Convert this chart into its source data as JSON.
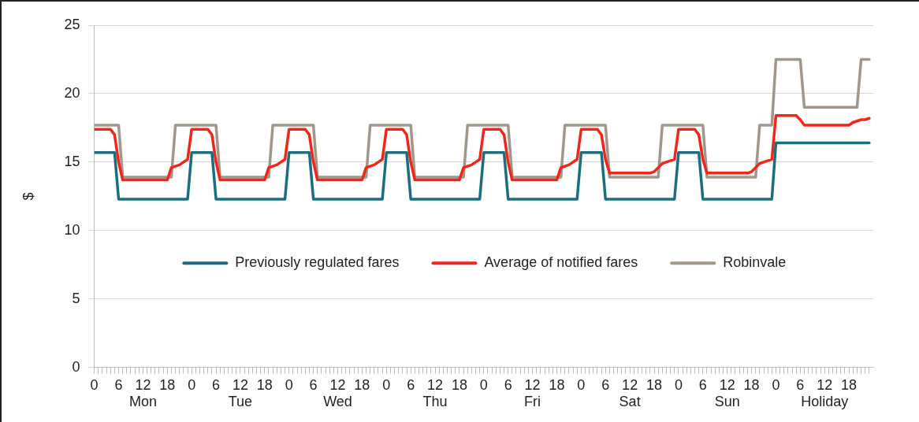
{
  "chart_data": {
    "type": "line",
    "ylabel": "$",
    "legend": "center",
    "grid": "y",
    "marker": "none",
    "line_style": "solid",
    "categories": [
      "0",
      null,
      null,
      null,
      null,
      null,
      "6",
      null,
      null,
      null,
      null,
      null,
      "12\nMon",
      null,
      null,
      null,
      null,
      null,
      "18",
      null,
      null,
      null,
      null,
      null,
      "0",
      null,
      null,
      null,
      null,
      null,
      "6",
      null,
      null,
      null,
      null,
      null,
      "12\nTue",
      null,
      null,
      null,
      null,
      null,
      "18",
      null,
      null,
      null,
      null,
      null,
      "0",
      null,
      null,
      null,
      null,
      null,
      "6",
      null,
      null,
      null,
      null,
      null,
      "12\nWed",
      null,
      null,
      null,
      null,
      null,
      "18",
      null,
      null,
      null,
      null,
      null,
      "0",
      null,
      null,
      null,
      null,
      null,
      "6",
      null,
      null,
      null,
      null,
      null,
      "12\nThu",
      null,
      null,
      null,
      null,
      null,
      "18",
      null,
      null,
      null,
      null,
      null,
      "0",
      null,
      null,
      null,
      null,
      null,
      "6",
      null,
      null,
      null,
      null,
      null,
      "12\nFri",
      null,
      null,
      null,
      null,
      null,
      "18",
      null,
      null,
      null,
      null,
      null,
      "0",
      null,
      null,
      null,
      null,
      null,
      "6",
      null,
      null,
      null,
      null,
      null,
      "12\nSat",
      null,
      null,
      null,
      null,
      null,
      "18",
      null,
      null,
      null,
      null,
      null,
      "0",
      null,
      null,
      null,
      null,
      null,
      "6",
      null,
      null,
      null,
      null,
      null,
      "12\nSun",
      null,
      null,
      null,
      null,
      null,
      "18",
      null,
      null,
      null,
      null,
      null,
      "0",
      null,
      null,
      null,
      null,
      null,
      "6",
      null,
      null,
      null,
      null,
      null,
      "12\nHoliday",
      null,
      null,
      null,
      null,
      null,
      "18",
      null,
      null,
      null,
      null,
      null
    ],
    "ylim": [
      0,
      25
    ],
    "yticks": [
      0,
      5,
      10,
      15,
      20,
      25
    ],
    "series": [
      {
        "name": "Previously regulated fares",
        "color": "#1b6e7e",
        "values": [
          15.7,
          15.7,
          15.7,
          15.7,
          15.7,
          15.7,
          12.3,
          12.3,
          12.3,
          12.3,
          12.3,
          12.3,
          12.3,
          12.3,
          12.3,
          12.3,
          12.3,
          12.3,
          12.3,
          12.3,
          12.3,
          12.3,
          12.3,
          12.3,
          15.7,
          15.7,
          15.7,
          15.7,
          15.7,
          15.7,
          12.3,
          12.3,
          12.3,
          12.3,
          12.3,
          12.3,
          12.3,
          12.3,
          12.3,
          12.3,
          12.3,
          12.3,
          12.3,
          12.3,
          12.3,
          12.3,
          12.3,
          12.3,
          15.7,
          15.7,
          15.7,
          15.7,
          15.7,
          15.7,
          12.3,
          12.3,
          12.3,
          12.3,
          12.3,
          12.3,
          12.3,
          12.3,
          12.3,
          12.3,
          12.3,
          12.3,
          12.3,
          12.3,
          12.3,
          12.3,
          12.3,
          12.3,
          15.7,
          15.7,
          15.7,
          15.7,
          15.7,
          15.7,
          12.3,
          12.3,
          12.3,
          12.3,
          12.3,
          12.3,
          12.3,
          12.3,
          12.3,
          12.3,
          12.3,
          12.3,
          12.3,
          12.3,
          12.3,
          12.3,
          12.3,
          12.3,
          15.7,
          15.7,
          15.7,
          15.7,
          15.7,
          15.7,
          12.3,
          12.3,
          12.3,
          12.3,
          12.3,
          12.3,
          12.3,
          12.3,
          12.3,
          12.3,
          12.3,
          12.3,
          12.3,
          12.3,
          12.3,
          12.3,
          12.3,
          12.3,
          15.7,
          15.7,
          15.7,
          15.7,
          15.7,
          15.7,
          12.3,
          12.3,
          12.3,
          12.3,
          12.3,
          12.3,
          12.3,
          12.3,
          12.3,
          12.3,
          12.3,
          12.3,
          12.3,
          12.3,
          12.3,
          12.3,
          12.3,
          12.3,
          15.7,
          15.7,
          15.7,
          15.7,
          15.7,
          15.7,
          12.3,
          12.3,
          12.3,
          12.3,
          12.3,
          12.3,
          12.3,
          12.3,
          12.3,
          12.3,
          12.3,
          12.3,
          12.3,
          12.3,
          12.3,
          12.3,
          12.3,
          12.3,
          16.4,
          16.4,
          16.4,
          16.4,
          16.4,
          16.4,
          16.4,
          16.4,
          16.4,
          16.4,
          16.4,
          16.4,
          16.4,
          16.4,
          16.4,
          16.4,
          16.4,
          16.4,
          16.4,
          16.4,
          16.4,
          16.4,
          16.4,
          16.4
        ]
      },
      {
        "name": "Average of notified fares",
        "color": "#f0261b",
        "values": [
          17.4,
          17.4,
          17.4,
          17.4,
          17.4,
          17,
          15,
          13.7,
          13.7,
          13.7,
          13.7,
          13.7,
          13.7,
          13.7,
          13.7,
          13.7,
          13.7,
          13.7,
          13.7,
          14.6,
          14.7,
          14.8,
          15,
          15.2,
          17.4,
          17.4,
          17.4,
          17.4,
          17.4,
          17,
          15,
          13.7,
          13.7,
          13.7,
          13.7,
          13.7,
          13.7,
          13.7,
          13.7,
          13.7,
          13.7,
          13.7,
          13.7,
          14.6,
          14.7,
          14.8,
          15,
          15.2,
          17.4,
          17.4,
          17.4,
          17.4,
          17.4,
          17,
          15,
          13.7,
          13.7,
          13.7,
          13.7,
          13.7,
          13.7,
          13.7,
          13.7,
          13.7,
          13.7,
          13.7,
          13.7,
          14.6,
          14.7,
          14.8,
          15,
          15.2,
          17.4,
          17.4,
          17.4,
          17.4,
          17.4,
          17,
          15,
          13.7,
          13.7,
          13.7,
          13.7,
          13.7,
          13.7,
          13.7,
          13.7,
          13.7,
          13.7,
          13.7,
          13.7,
          14.6,
          14.7,
          14.8,
          15,
          15.2,
          17.4,
          17.4,
          17.4,
          17.4,
          17.4,
          17,
          15,
          13.7,
          13.7,
          13.7,
          13.7,
          13.7,
          13.7,
          13.7,
          13.7,
          13.7,
          13.7,
          13.7,
          13.7,
          14.6,
          14.7,
          14.8,
          15,
          15.2,
          17.4,
          17.4,
          17.4,
          17.4,
          17.4,
          17,
          15.2,
          14.2,
          14.2,
          14.2,
          14.2,
          14.2,
          14.2,
          14.2,
          14.2,
          14.2,
          14.2,
          14.2,
          14.3,
          14.6,
          14.9,
          15,
          15.1,
          15.2,
          17.4,
          17.4,
          17.4,
          17.4,
          17.4,
          17,
          15.2,
          14.2,
          14.2,
          14.2,
          14.2,
          14.2,
          14.2,
          14.2,
          14.2,
          14.2,
          14.2,
          14.2,
          14.3,
          14.6,
          14.9,
          15,
          15.1,
          15.2,
          18.4,
          18.4,
          18.4,
          18.4,
          18.4,
          18.4,
          18.1,
          17.7,
          17.7,
          17.7,
          17.7,
          17.7,
          17.7,
          17.7,
          17.7,
          17.7,
          17.7,
          17.7,
          17.7,
          17.9,
          18,
          18.1,
          18.1,
          18.2
        ]
      },
      {
        "name": "Robinvale",
        "color": "#a0978a",
        "values": [
          17.7,
          17.7,
          17.7,
          17.7,
          17.7,
          17.7,
          17.7,
          13.9,
          13.9,
          13.9,
          13.9,
          13.9,
          13.9,
          13.9,
          13.9,
          13.9,
          13.9,
          13.9,
          13.9,
          13.9,
          17.7,
          17.7,
          17.7,
          17.7,
          17.7,
          17.7,
          17.7,
          17.7,
          17.7,
          17.7,
          17.7,
          13.9,
          13.9,
          13.9,
          13.9,
          13.9,
          13.9,
          13.9,
          13.9,
          13.9,
          13.9,
          13.9,
          13.9,
          13.9,
          17.7,
          17.7,
          17.7,
          17.7,
          17.7,
          17.7,
          17.7,
          17.7,
          17.7,
          17.7,
          17.7,
          13.9,
          13.9,
          13.9,
          13.9,
          13.9,
          13.9,
          13.9,
          13.9,
          13.9,
          13.9,
          13.9,
          13.9,
          13.9,
          17.7,
          17.7,
          17.7,
          17.7,
          17.7,
          17.7,
          17.7,
          17.7,
          17.7,
          17.7,
          17.7,
          13.9,
          13.9,
          13.9,
          13.9,
          13.9,
          13.9,
          13.9,
          13.9,
          13.9,
          13.9,
          13.9,
          13.9,
          13.9,
          17.7,
          17.7,
          17.7,
          17.7,
          17.7,
          17.7,
          17.7,
          17.7,
          17.7,
          17.7,
          17.7,
          13.9,
          13.9,
          13.9,
          13.9,
          13.9,
          13.9,
          13.9,
          13.9,
          13.9,
          13.9,
          13.9,
          13.9,
          13.9,
          17.7,
          17.7,
          17.7,
          17.7,
          17.7,
          17.7,
          17.7,
          17.7,
          17.7,
          17.7,
          17.7,
          13.9,
          13.9,
          13.9,
          13.9,
          13.9,
          13.9,
          13.9,
          13.9,
          13.9,
          13.9,
          13.9,
          13.9,
          13.9,
          17.7,
          17.7,
          17.7,
          17.7,
          17.7,
          17.7,
          17.7,
          17.7,
          17.7,
          17.7,
          17.7,
          13.9,
          13.9,
          13.9,
          13.9,
          13.9,
          13.9,
          13.9,
          13.9,
          13.9,
          13.9,
          13.9,
          13.9,
          13.9,
          17.7,
          17.7,
          17.7,
          17.7,
          22.5,
          22.5,
          22.5,
          22.5,
          22.5,
          22.5,
          22.5,
          19,
          19,
          19,
          19,
          19,
          19,
          19,
          19,
          19,
          19,
          19,
          19,
          19,
          19,
          22.5,
          22.5,
          22.5
        ]
      }
    ]
  }
}
